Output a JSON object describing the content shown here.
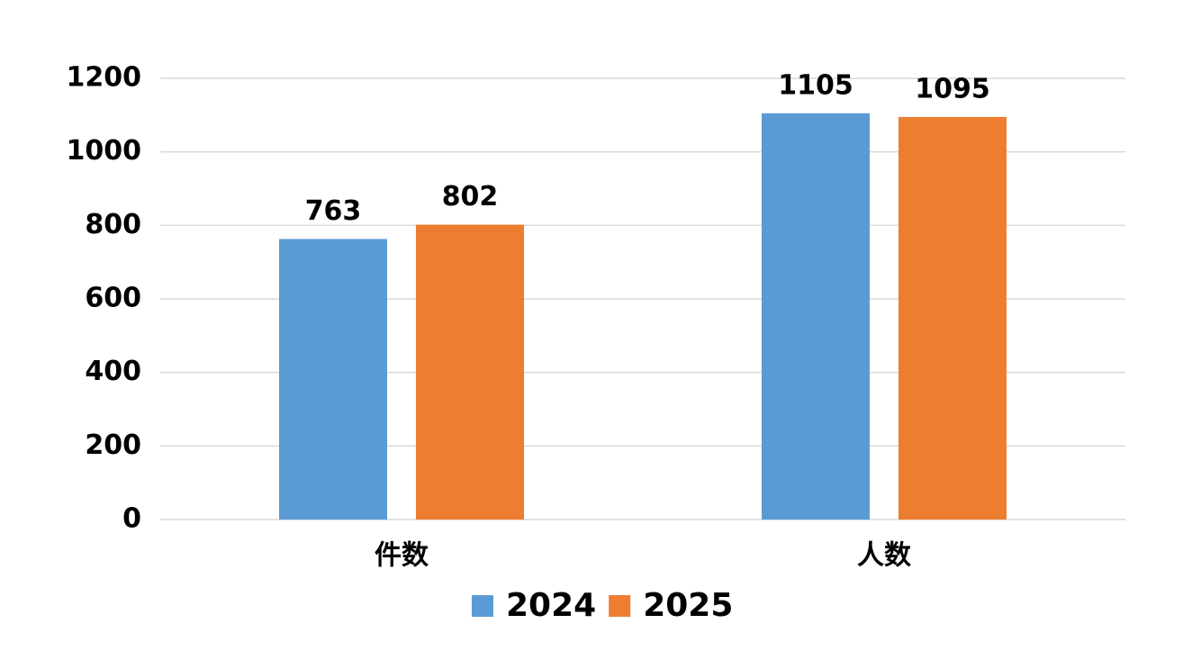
{
  "chart_data": {
    "type": "bar",
    "categories": [
      "件数",
      "人数"
    ],
    "series": [
      {
        "name": "2024",
        "color": "#5b9bd5",
        "values": [
          763,
          1105
        ]
      },
      {
        "name": "2025",
        "color": "#ed7d31",
        "values": [
          802,
          1095
        ]
      }
    ],
    "ylim": [
      0,
      1200
    ],
    "yticks": [
      0,
      200,
      400,
      600,
      800,
      1000,
      1200
    ],
    "grid": true,
    "legend": "bottom"
  }
}
